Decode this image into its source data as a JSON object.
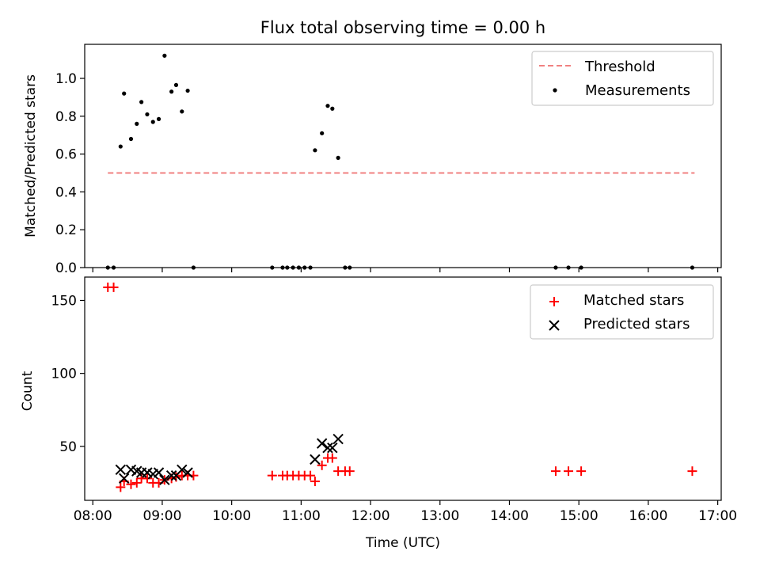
{
  "figure": {
    "title": "Flux total observing time = 0.00 h"
  },
  "chart_data": [
    {
      "type": "scatter",
      "panel": "top",
      "title": "Flux total observing time = 0.00 h",
      "xlabel": "",
      "ylabel": "Matched/Predicted stars",
      "xlim": [
        "07:53",
        "17:03"
      ],
      "ylim": [
        0,
        1.18
      ],
      "yticks": [
        0.0,
        0.2,
        0.4,
        0.6,
        0.8,
        1.0
      ],
      "ytick_labels": [
        "0.0",
        "0.2",
        "0.4",
        "0.6",
        "0.8",
        "1.0"
      ],
      "legend_position": "top-right",
      "series": [
        {
          "name": "Threshold",
          "style": "dashed-line",
          "color": "#f08080",
          "points": [
            [
              "08:13",
              0.5
            ],
            [
              "16:40",
              0.5
            ]
          ]
        },
        {
          "name": "Measurements",
          "style": "dot",
          "color": "#000000",
          "points": [
            [
              "08:13",
              0.0
            ],
            [
              "08:18",
              0.0
            ],
            [
              "08:24",
              0.64
            ],
            [
              "08:27",
              0.92
            ],
            [
              "08:33",
              0.68
            ],
            [
              "08:38",
              0.76
            ],
            [
              "08:42",
              0.875
            ],
            [
              "08:47",
              0.81
            ],
            [
              "08:52",
              0.77
            ],
            [
              "08:57",
              0.785
            ],
            [
              "09:02",
              1.12
            ],
            [
              "09:08",
              0.93
            ],
            [
              "09:12",
              0.965
            ],
            [
              "09:17",
              0.825
            ],
            [
              "09:22",
              0.935
            ],
            [
              "09:27",
              0.0
            ],
            [
              "10:35",
              0.0
            ],
            [
              "10:44",
              0.0
            ],
            [
              "10:48",
              0.0
            ],
            [
              "10:53",
              0.0
            ],
            [
              "10:58",
              0.0
            ],
            [
              "11:03",
              0.0
            ],
            [
              "11:08",
              0.0
            ],
            [
              "11:12",
              0.62
            ],
            [
              "11:18",
              0.71
            ],
            [
              "11:23",
              0.855
            ],
            [
              "11:27",
              0.84
            ],
            [
              "11:32",
              0.58
            ],
            [
              "11:38",
              0.0
            ],
            [
              "11:42",
              0.0
            ],
            [
              "14:40",
              0.0
            ],
            [
              "14:51",
              0.0
            ],
            [
              "15:02",
              0.0
            ],
            [
              "16:38",
              0.0
            ]
          ]
        }
      ]
    },
    {
      "type": "scatter",
      "panel": "bottom",
      "xlabel": "Time (UTC)",
      "ylabel": "Count",
      "xlim": [
        "07:53",
        "17:03"
      ],
      "ylim": [
        13,
        166
      ],
      "yticks": [
        50,
        100,
        150
      ],
      "ytick_labels": [
        "50",
        "100",
        "150"
      ],
      "xticks": [
        "08:00",
        "09:00",
        "10:00",
        "11:00",
        "12:00",
        "13:00",
        "14:00",
        "15:00",
        "16:00",
        "17:00"
      ],
      "legend_position": "top-right",
      "series": [
        {
          "name": "Matched stars",
          "marker": "plus",
          "color": "#ff0000",
          "points": [
            [
              "08:13",
              159
            ],
            [
              "08:18",
              159
            ],
            [
              "08:24",
              22
            ],
            [
              "08:27",
              26
            ],
            [
              "08:33",
              24
            ],
            [
              "08:38",
              25
            ],
            [
              "08:42",
              28
            ],
            [
              "08:47",
              28
            ],
            [
              "08:52",
              25
            ],
            [
              "08:57",
              25
            ],
            [
              "09:02",
              27
            ],
            [
              "09:08",
              28
            ],
            [
              "09:12",
              29
            ],
            [
              "09:17",
              30
            ],
            [
              "09:22",
              30
            ],
            [
              "09:27",
              30
            ],
            [
              "10:35",
              30
            ],
            [
              "10:44",
              30
            ],
            [
              "10:48",
              30
            ],
            [
              "10:53",
              30
            ],
            [
              "10:58",
              30
            ],
            [
              "11:03",
              30
            ],
            [
              "11:08",
              30
            ],
            [
              "11:12",
              26
            ],
            [
              "11:18",
              37
            ],
            [
              "11:23",
              42
            ],
            [
              "11:27",
              42
            ],
            [
              "11:32",
              33
            ],
            [
              "11:38",
              33
            ],
            [
              "11:42",
              33
            ],
            [
              "14:40",
              33
            ],
            [
              "14:51",
              33
            ],
            [
              "15:02",
              33
            ],
            [
              "16:38",
              33
            ]
          ]
        },
        {
          "name": "Predicted stars",
          "marker": "x",
          "color": "#000000",
          "points": [
            [
              "08:24",
              34
            ],
            [
              "08:27",
              28
            ],
            [
              "08:33",
              34
            ],
            [
              "08:38",
              33
            ],
            [
              "08:42",
              32
            ],
            [
              "08:47",
              32
            ],
            [
              "08:52",
              31
            ],
            [
              "08:57",
              32
            ],
            [
              "09:02",
              27
            ],
            [
              "09:08",
              30
            ],
            [
              "09:12",
              30
            ],
            [
              "09:17",
              34
            ],
            [
              "09:22",
              32
            ],
            [
              "11:12",
              41
            ],
            [
              "11:18",
              52
            ],
            [
              "11:23",
              49
            ],
            [
              "11:27",
              49
            ],
            [
              "11:32",
              55
            ]
          ]
        }
      ]
    }
  ]
}
